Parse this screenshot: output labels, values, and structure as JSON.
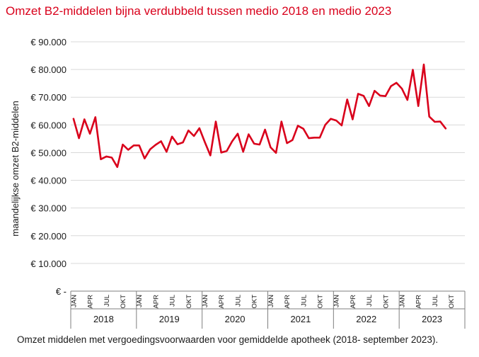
{
  "title": "Omzet B2-middelen bijna verdubbeld tussen medio 2018 en medio 2023",
  "caption": "Omzet middelen met vergoedingsvoorwaarden voor gemiddelde apotheek (2018- september 2023).",
  "colors": {
    "title": "#d9001b",
    "line": "#d9001b",
    "grid": "#d9d9d9",
    "axis": "#7f7f7f"
  },
  "chart_data": {
    "type": "line",
    "ylabel": "maandelijkse omzet B2-middelen",
    "ylim": [
      0,
      90000
    ],
    "yticks": [
      0,
      10000,
      20000,
      30000,
      40000,
      50000,
      60000,
      70000,
      80000,
      90000
    ],
    "ytick_labels": [
      "€ -",
      "€ 10.000",
      "€ 20.000",
      "€ 30.000",
      "€ 40.000",
      "€ 50.000",
      "€ 60.000",
      "€ 70.000",
      "€ 80.000",
      "€ 90.000"
    ],
    "grid": true,
    "month_labels": [
      "JAN",
      "APR",
      "JUL",
      "OKT"
    ],
    "years": [
      "2018",
      "2019",
      "2020",
      "2021",
      "2022",
      "2023"
    ],
    "x_start": "2018-01",
    "x_end": "2023-09",
    "series": [
      {
        "values": [
          62200,
          55200,
          62000,
          56800,
          62800,
          47600,
          48600,
          48200,
          44800,
          52900,
          51000,
          52600,
          52600,
          47900,
          51200,
          52800,
          54100,
          50300,
          55800,
          53000,
          53700,
          58000,
          56000,
          58800,
          53800,
          49000,
          61200,
          50000,
          50600,
          54100,
          56800,
          50300,
          56600,
          53200,
          52900,
          58300,
          51900,
          49900,
          61200,
          53400,
          54500,
          59700,
          58600,
          55200,
          55400,
          55400,
          60000,
          62200,
          61600,
          59800,
          69200,
          62000,
          71200,
          70500,
          66800,
          72300,
          70600,
          70400,
          74000,
          75200,
          73100,
          69000,
          79900,
          66800,
          81800,
          63000,
          61100,
          61200,
          58700
        ]
      }
    ]
  }
}
